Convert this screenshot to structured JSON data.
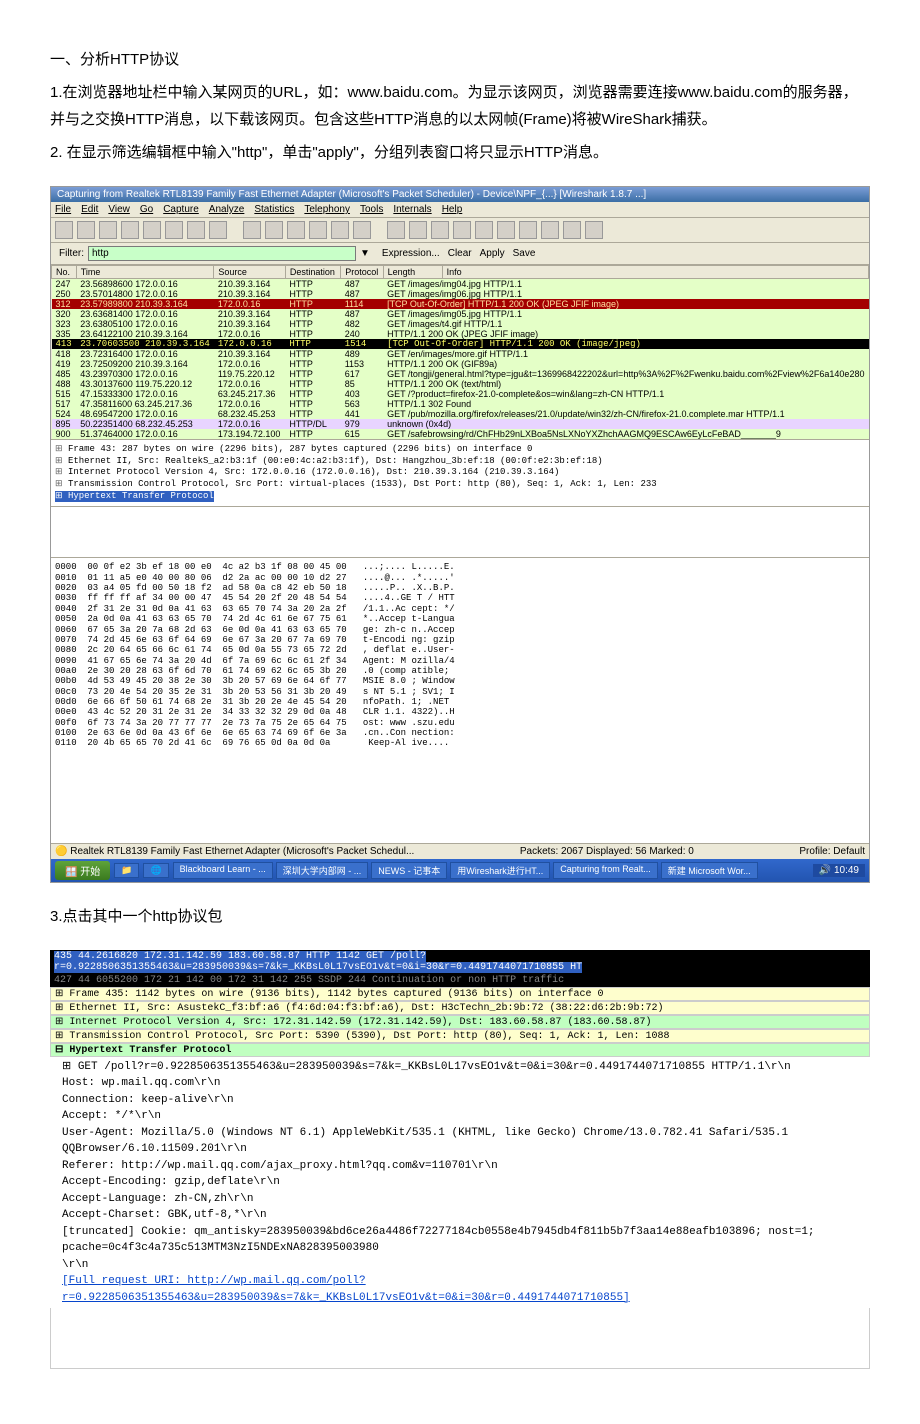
{
  "doc": {
    "h1": "一、分析HTTP协议",
    "p1": "1.在浏览器地址栏中输入某网页的URL，如：www.baidu.com。为显示该网页，浏览器需要连接www.baidu.com的服务器，并与之交换HTTP消息，以下载该网页。包含这些HTTP消息的以太网帧(Frame)将被WireShark捕获。",
    "p2": "2. 在显示筛选编辑框中输入\"http\"，单击\"apply\"，分组列表窗口将只显示HTTP消息。",
    "p3": "3.点击其中一个http协议包"
  },
  "ws": {
    "title": "Capturing from Realtek RTL8139 Family Fast Ethernet Adapter (Microsoft's Packet Scheduler) - Device\\NPF_{...}  [Wireshark 1.8.7 ...]",
    "menu": [
      "File",
      "Edit",
      "View",
      "Go",
      "Capture",
      "Analyze",
      "Statistics",
      "Telephony",
      "Tools",
      "Internals",
      "Help"
    ],
    "filter_label": "Filter:",
    "filter_value": "http",
    "filter_btns": [
      "Expression...",
      "Clear",
      "Apply",
      "Save"
    ],
    "cols": [
      "No.",
      "Time",
      "Source",
      "Destination",
      "Protocol",
      "Length",
      "Info"
    ],
    "rows": [
      {
        "c": "green",
        "no": "247",
        "time": "23.5689860",
        "src": "172.0.0.16",
        "dst": "210.39.3.164",
        "proto": "HTTP",
        "len": "487",
        "info": "GET /images/img04.jpg HTTP/1.1"
      },
      {
        "c": "green",
        "no": "250",
        "time": "23.5701480",
        "src": "172.0.0.16",
        "dst": "210.39.3.164",
        "proto": "HTTP",
        "len": "487",
        "info": "GET /images/img06.jpg HTTP/1.1"
      },
      {
        "c": "red",
        "no": "312",
        "time": "23.5798980",
        "src": "210.39.3.164",
        "dst": "172.0.0.16",
        "proto": "HTTP",
        "len": "1114",
        "info": "[TCP Out-Of-Order] HTTP/1.1 200 OK  (JPEG JFIF image)"
      },
      {
        "c": "green",
        "no": "320",
        "time": "23.6368140",
        "src": "172.0.0.16",
        "dst": "210.39.3.164",
        "proto": "HTTP",
        "len": "487",
        "info": "GET /images/img05.jpg HTTP/1.1"
      },
      {
        "c": "green",
        "no": "323",
        "time": "23.6380510",
        "src": "172.0.0.16",
        "dst": "210.39.3.164",
        "proto": "HTTP",
        "len": "482",
        "info": "GET /images/t4.gif HTTP/1.1"
      },
      {
        "c": "green",
        "no": "335",
        "time": "23.6412210",
        "src": "210.39.3.164",
        "dst": "172.0.0.16",
        "proto": "HTTP",
        "len": "240",
        "info": "HTTP/1.1 200 OK  (JPEG JFIF image)"
      },
      {
        "c": "black",
        "no": "413",
        "time": "23.7060350",
        "src": "210.39.3.164",
        "dst": "172.0.0.16",
        "proto": "HTTP",
        "len": "1514",
        "info": "[TCP Out-Of-Order] HTTP/1.1 200 OK  (image/jpeg)"
      },
      {
        "c": "green",
        "no": "418",
        "time": "23.7231640",
        "src": "172.0.0.16",
        "dst": "210.39.3.164",
        "proto": "HTTP",
        "len": "489",
        "info": "GET /en/images/more.gif HTTP/1.1"
      },
      {
        "c": "green",
        "no": "419",
        "time": "23.7250920",
        "src": "210.39.3.164",
        "dst": "172.0.0.16",
        "proto": "HTTP",
        "len": "1153",
        "info": "HTTP/1.1 200 OK  (GIF89a)"
      },
      {
        "c": "green",
        "no": "485",
        "time": "43.2397030",
        "src": "172.0.0.16",
        "dst": "119.75.220.12",
        "proto": "HTTP",
        "len": "617",
        "info": "GET /tongji/general.html?type=jgu&t=1369968422202&url=http%3A%2F%2Fwenku.baidu.com%2Fview%2F6a140e280"
      },
      {
        "c": "green",
        "no": "488",
        "time": "43.3013760",
        "src": "119.75.220.12",
        "dst": "172.0.0.16",
        "proto": "HTTP",
        "len": "85",
        "info": "HTTP/1.1 200 OK  (text/html)"
      },
      {
        "c": "green",
        "no": "515",
        "time": "47.1533330",
        "src": "172.0.0.16",
        "dst": "63.245.217.36",
        "proto": "HTTP",
        "len": "403",
        "info": "GET /?product=firefox-21.0-complete&os=win&lang=zh-CN HTTP/1.1"
      },
      {
        "c": "green",
        "no": "517",
        "time": "47.3581160",
        "src": "63.245.217.36",
        "dst": "172.0.0.16",
        "proto": "HTTP",
        "len": "563",
        "info": "HTTP/1.1 302 Found"
      },
      {
        "c": "green",
        "no": "524",
        "time": "48.6954720",
        "src": "172.0.0.16",
        "dst": "68.232.45.253",
        "proto": "HTTP",
        "len": "441",
        "info": "GET /pub/mozilla.org/firefox/releases/21.0/update/win32/zh-CN/firefox-21.0.complete.mar HTTP/1.1"
      },
      {
        "c": "purple",
        "no": "895",
        "time": "50.2235140",
        "src": "68.232.45.253",
        "dst": "172.0.0.16",
        "proto": "HTTP/DL",
        "len": "979",
        "info": "unknown (0x4d)"
      },
      {
        "c": "green",
        "no": "900",
        "time": "51.3746400",
        "src": "172.0.0.16",
        "dst": "173.194.72.100",
        "proto": "HTTP",
        "len": "615",
        "info": "GET /safebrowsing/rd/ChFHb29nLXBoa5NsLXNoYXZhchAAGMQ9ESCAw6EyLcFeBAD_______9"
      }
    ],
    "tree": [
      "Frame 43: 287 bytes on wire (2296 bits), 287 bytes captured (2296 bits) on interface 0",
      "Ethernet II, Src: RealtekS_a2:b3:1f (00:e0:4c:a2:b3:1f), Dst: Hangzhou_3b:ef:18 (00:0f:e2:3b:ef:18)",
      "Internet Protocol Version 4, Src: 172.0.0.16 (172.0.0.16), Dst: 210.39.3.164 (210.39.3.164)",
      "Transmission Control Protocol, Src Port: virtual-places (1533), Dst Port: http (80), Seq: 1, Ack: 1, Len: 233"
    ],
    "tree_sel": "Hypertext Transfer Protocol",
    "hex": "0000  00 0f e2 3b ef 18 00 e0  4c a2 b3 1f 08 00 45 00   ...;.... L.....E.\n0010  01 11 a5 e0 40 00 80 06  d2 2a ac 00 00 10 d2 27   ....@... .*.....'\n0020  03 a4 05 fd 00 50 18 f2  ad 58 0a c8 42 eb 50 18   .....P.. .X..B.P.\n0030  ff ff ff af 34 00 00 47  45 54 20 2f 20 48 54 54   ....4..GE T / HTT\n0040  2f 31 2e 31 0d 0a 41 63  63 65 70 74 3a 20 2a 2f   /1.1..Ac cept: */\n0050  2a 0d 0a 41 63 63 65 70  74 2d 4c 61 6e 67 75 61   *..Accep t-Langua\n0060  67 65 3a 20 7a 68 2d 63  6e 0d 0a 41 63 63 65 70   ge: zh-c n..Accep\n0070  74 2d 45 6e 63 6f 64 69  6e 67 3a 20 67 7a 69 70   t-Encodi ng: gzip\n0080  2c 20 64 65 66 6c 61 74  65 0d 0a 55 73 65 72 2d   , deflat e..User-\n0090  41 67 65 6e 74 3a 20 4d  6f 7a 69 6c 6c 61 2f 34   Agent: M ozilla/4\n00a0  2e 30 20 28 63 6f 6d 70  61 74 69 62 6c 65 3b 20   .0 (comp atible; \n00b0  4d 53 49 45 20 38 2e 30  3b 20 57 69 6e 64 6f 77   MSIE 8.0 ; Window\n00c0  73 20 4e 54 20 35 2e 31  3b 20 53 56 31 3b 20 49   s NT 5.1 ; SV1; I\n00d0  6e 66 6f 50 61 74 68 2e  31 3b 20 2e 4e 45 54 20   nfoPath. 1; .NET \n00e0  43 4c 52 20 31 2e 31 2e  34 33 32 32 29 0d 0a 48   CLR 1.1. 4322)..H\n00f0  6f 73 74 3a 20 77 77 77  2e 73 7a 75 2e 65 64 75   ost: www .szu.edu\n0100  2e 63 6e 0d 0a 43 6f 6e  6e 65 63 74 69 6f 6e 3a   .cn..Con nection:\n0110  20 4b 65 65 70 2d 41 6c  69 76 65 0d 0a 0d 0a       Keep-Al ive....",
    "status_left": "Realtek RTL8139 Family Fast Ethernet Adapter (Microsoft's Packet Schedul...",
    "status_mid": "Packets: 2067 Displayed: 56 Marked: 0",
    "status_right": "Profile: Default",
    "taskbar": {
      "start": "开始",
      "tasks": [
        "Blackboard Learn - ...",
        "深圳大学内部网 - ...",
        "NEWS - 记事本",
        "用Wireshark进行HT...",
        "Capturing from Realt...",
        "新建 Microsoft Wor..."
      ],
      "time": "10:49"
    }
  },
  "ws2": {
    "toprow1": "435 44.2616820 172.31.142.59     183.60.58.87      HTTP    1142 GET /poll?r=0.9228506351355463&u=283950039&s=7&k=_KKBsL0L17vsEO1v&t=0&i=30&r=0.4491744071710855 HT",
    "toprow2": "427 44 6055200 172 21 142 00      172 31 142 255    SSDP    244 Continuation or non HTTP traffic",
    "hdr0": "Frame 435: 1142 bytes on wire (9136 bits), 1142 bytes captured (9136 bits) on interface 0",
    "hdr1": "Ethernet II, Src: AsustekC_f3:bf:a6 (f4:6d:04:f3:bf:a6), Dst: H3cTechn_2b:9b:72 (38:22:d6:2b:9b:72)",
    "hdr2": "Internet Protocol Version 4, Src: 172.31.142.59 (172.31.142.59), Dst: 183.60.58.87 (183.60.58.87)",
    "hdr3": "Transmission Control Protocol, Src Port: 5390 (5390), Dst Port: http (80), Seq: 1, Ack: 1, Len: 1088",
    "hdr4": "Hypertext Transfer Protocol",
    "body": [
      "GET /poll?r=0.9228506351355463&u=283950039&s=7&k=_KKBsL0L17vsEO1v&t=0&i=30&r=0.4491744071710855 HTTP/1.1\\r\\n",
      "Host: wp.mail.qq.com\\r\\n",
      "Connection: keep-alive\\r\\n",
      "Accept: */*\\r\\n",
      "User-Agent: Mozilla/5.0 (Windows NT 6.1) AppleWebKit/535.1 (KHTML, like Gecko) Chrome/13.0.782.41 Safari/535.1 QQBrowser/6.10.11509.201\\r\\n",
      "Referer: http://wp.mail.qq.com/ajax_proxy.html?qq.com&v=110701\\r\\n",
      "Accept-Encoding: gzip,deflate\\r\\n",
      "Accept-Language: zh-CN,zh\\r\\n",
      "Accept-Charset: GBK,utf-8,*\\r\\n",
      "[truncated] Cookie: qm_antisky=283950039&bd6ce26a4486f72277184cb0558e4b7945db4f811b5b7f3aa14e88eafb103896; nost=1; pcache=0c4f3c4a735c513MTM3NzI5NDExNA828395003980",
      "\\r\\n"
    ],
    "link": "[Full request URI: http://wp.mail.qq.com/poll?r=0.9228506351355463&u=283950039&s=7&k=_KKBsL0L17vsEO1v&t=0&i=30&r=0.4491744071710855]"
  }
}
